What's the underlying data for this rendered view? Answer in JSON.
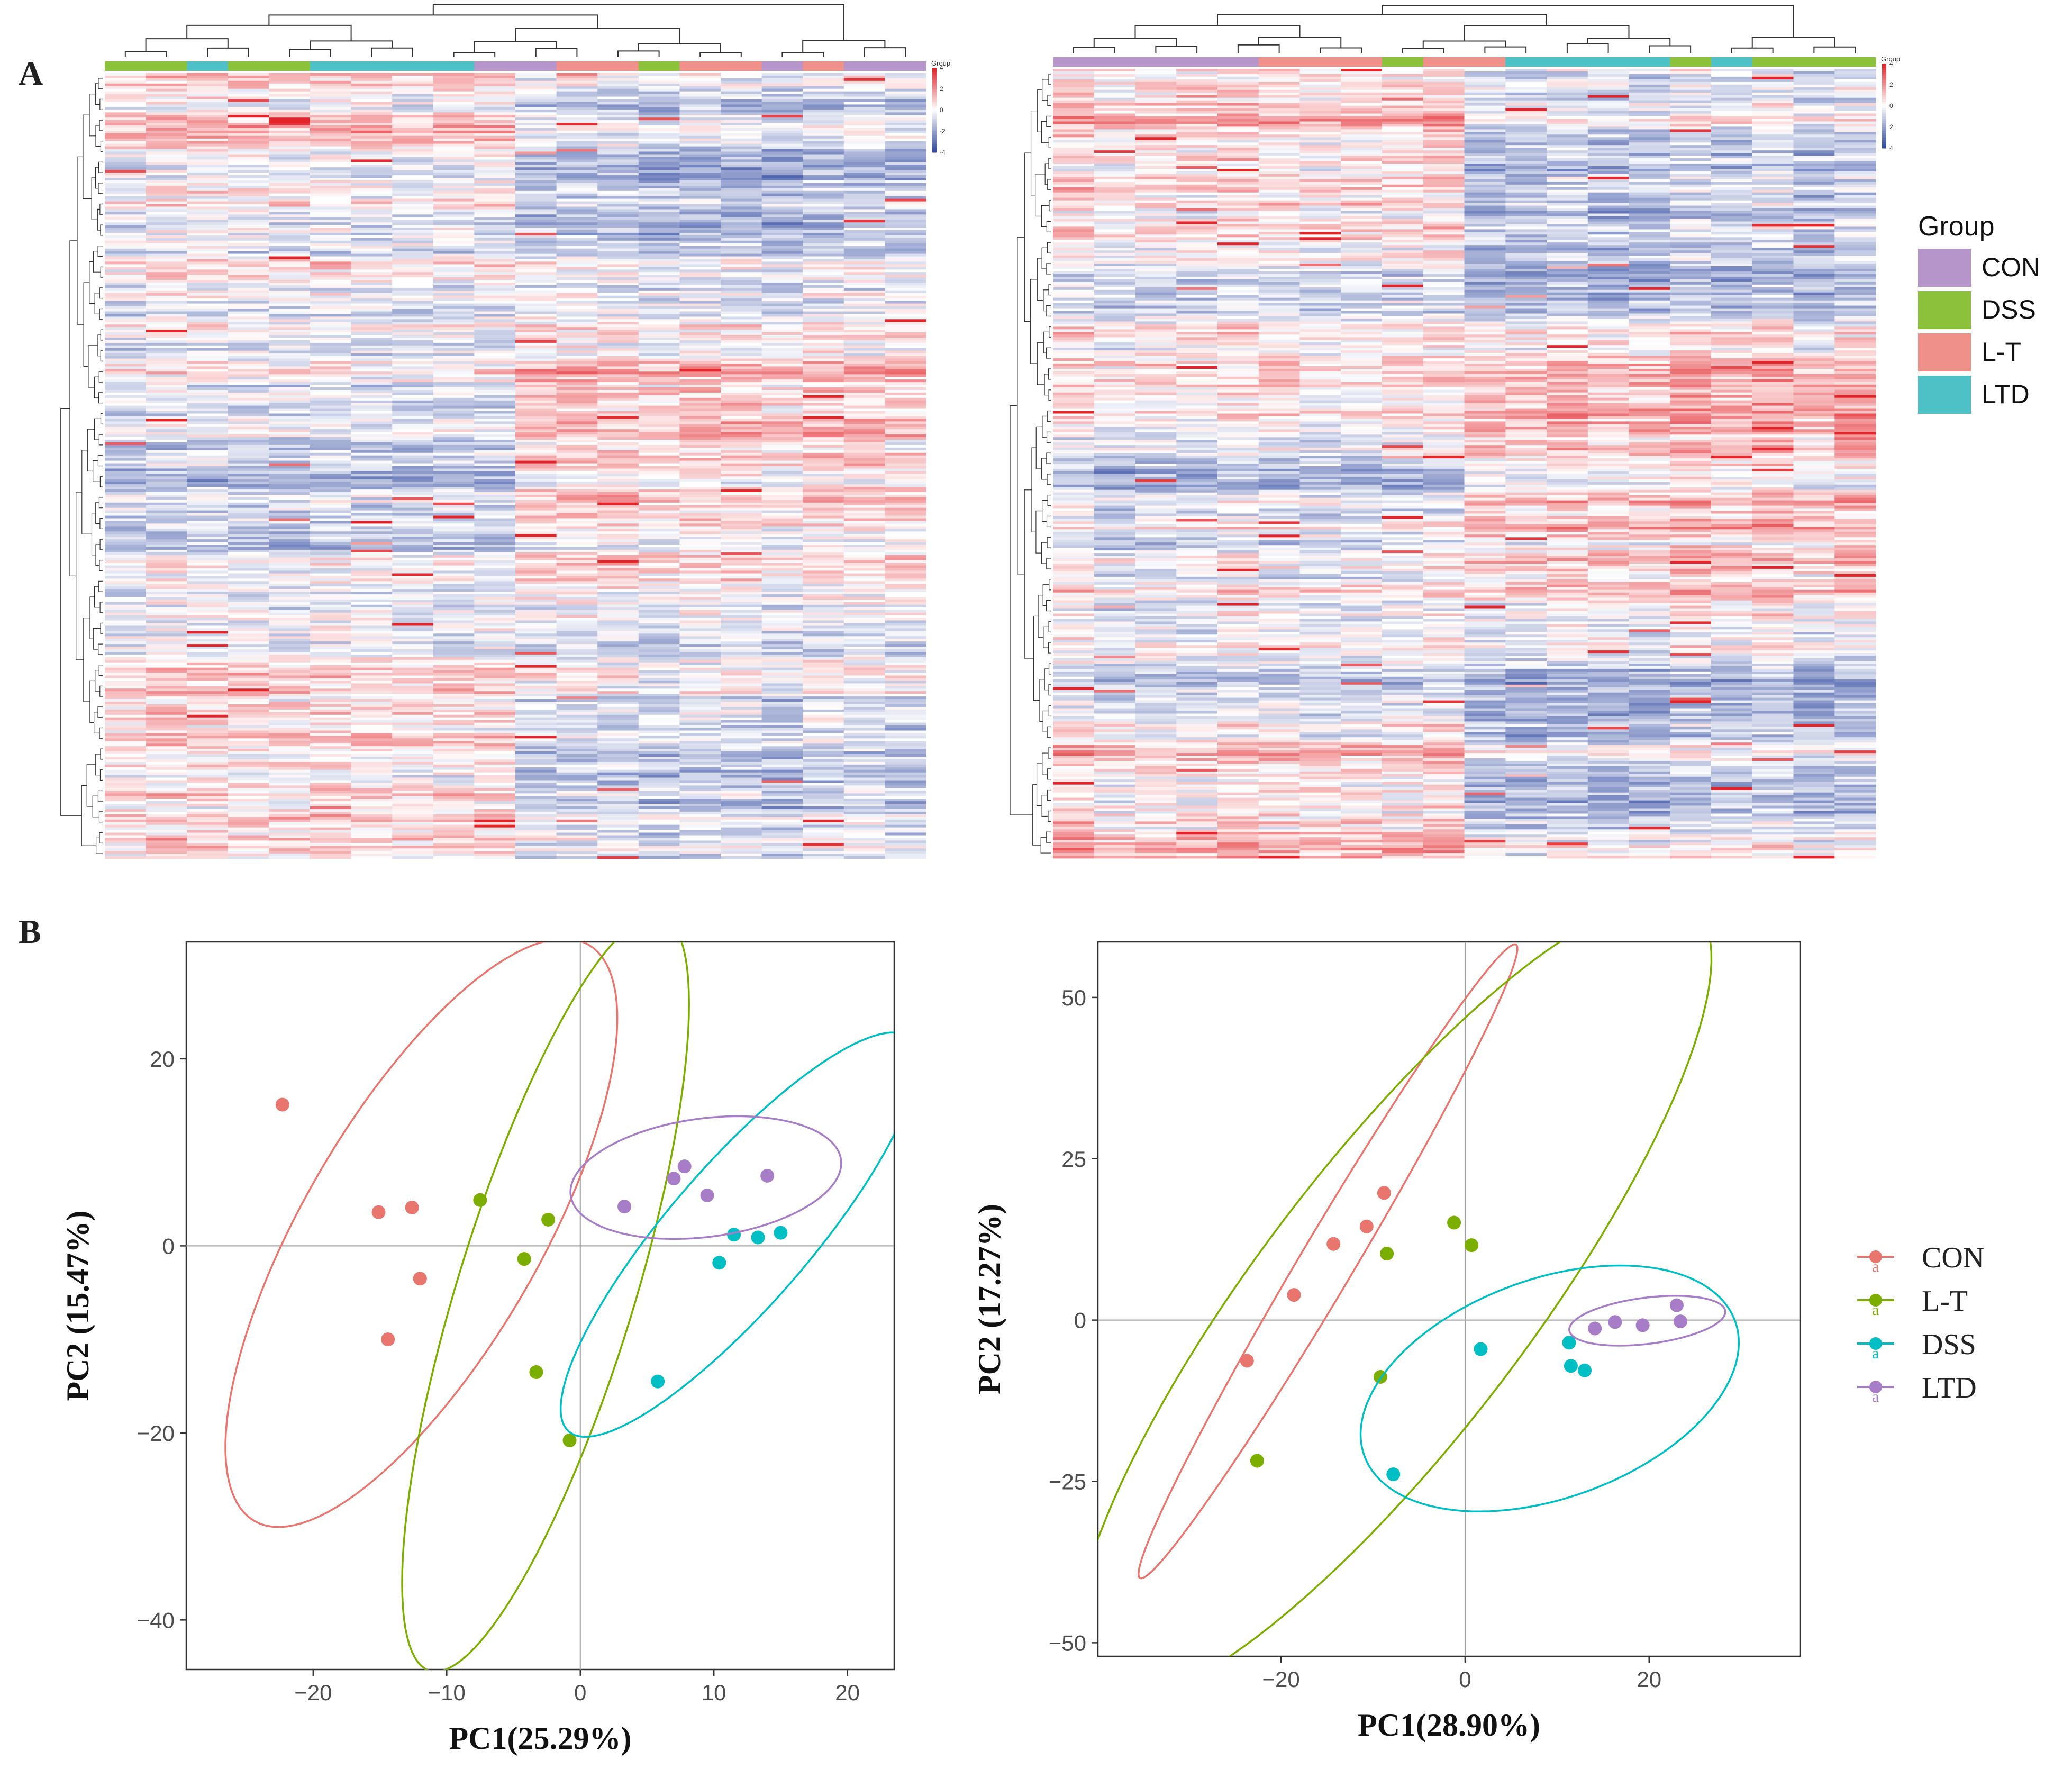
{
  "labels": {
    "panel_a": "A",
    "panel_b": "B"
  },
  "colors": {
    "CON": "#E8756E",
    "L-T": "#7CAE00",
    "DSS": "#00BFC4",
    "LTD": "#A77DC8",
    "hm_CON": "#B696CA",
    "hm_DSS": "#8CC23B",
    "hm_LT": "#F0908A",
    "hm_LTD": "#4EC1C6",
    "hm_low": "#3149A0",
    "hm_mid": "#FFFFFF",
    "hm_high": "#E2252B"
  },
  "heatmap_legend": {
    "title": "Group",
    "items": [
      {
        "label": "CON",
        "color": "#B696CA"
      },
      {
        "label": "DSS",
        "color": "#8CC23B"
      },
      {
        "label": "L-T",
        "color": "#F0908A"
      },
      {
        "label": "LTD",
        "color": "#4EC1C6"
      }
    ]
  },
  "pca_legend": {
    "items": [
      {
        "label": "CON",
        "color": "#E8756E",
        "glyph": "a"
      },
      {
        "label": "L-T",
        "color": "#7CAE00",
        "glyph": "a"
      },
      {
        "label": "DSS",
        "color": "#00BFC4",
        "glyph": "a"
      },
      {
        "label": "LTD",
        "color": "#A77DC8",
        "glyph": "a"
      }
    ]
  },
  "chart_data": [
    {
      "type": "heatmap",
      "id": "heatmap-left",
      "colorbar": {
        "title": "Group",
        "ticks": [
          "4",
          "2",
          "0",
          "-2",
          "-4"
        ],
        "range": [
          -4,
          4
        ]
      },
      "column_groups": [
        "DSS",
        "DSS",
        "LTD",
        "DSS",
        "DSS",
        "LTD",
        "LTD",
        "LTD",
        "LTD",
        "CON",
        "CON",
        "L-T",
        "L-T",
        "DSS",
        "L-T",
        "L-T",
        "CON",
        "L-T",
        "CON",
        "CON"
      ],
      "n_rows": 300
    },
    {
      "type": "heatmap",
      "id": "heatmap-right",
      "colorbar": {
        "title": "Group",
        "ticks": [
          "4",
          "2",
          "0",
          "2",
          "4"
        ],
        "range": [
          -4,
          4
        ]
      },
      "column_groups": [
        "CON",
        "CON",
        "CON",
        "CON",
        "CON",
        "L-T",
        "L-T",
        "L-T",
        "DSS",
        "L-T",
        "L-T",
        "LTD",
        "LTD",
        "LTD",
        "LTD",
        "DSS",
        "LTD",
        "DSS",
        "DSS",
        "DSS"
      ],
      "n_rows": 300
    },
    {
      "type": "scatter",
      "id": "pca-left",
      "xlabel": "PC1(25.29%)",
      "ylabel": "PC2 (15.47%)",
      "xlim": [
        -29.5,
        23.5
      ],
      "ylim": [
        -45.3,
        32.5
      ],
      "xticks": [
        -20,
        -10,
        0,
        10,
        20
      ],
      "yticks": [
        -40,
        -20,
        0,
        20
      ],
      "series": [
        {
          "name": "CON",
          "points": [
            [
              -22.3,
              15.1
            ],
            [
              -15.1,
              3.6
            ],
            [
              -12.6,
              4.1
            ],
            [
              -12,
              -3.5
            ],
            [
              -14.4,
              -10
            ]
          ],
          "ellipse": {
            "cx": -11.9,
            "cy": 1.4,
            "a": 29.8,
            "b": 10.6,
            "angle_deg": -59.9
          }
        },
        {
          "name": "L-T",
          "points": [
            [
              -7.5,
              4.9
            ],
            [
              -2.4,
              2.8
            ],
            [
              -4.2,
              -1.4
            ],
            [
              -3.3,
              -13.5
            ],
            [
              -0.8,
              -20.8
            ]
          ],
          "ellipse": {
            "cx": -2.6,
            "cy": -5.1,
            "a": 35.3,
            "b": 7.9,
            "angle_deg": -72.9
          }
        },
        {
          "name": "DSS",
          "points": [
            [
              11.5,
              1.2
            ],
            [
              13.3,
              0.9
            ],
            [
              15,
              1.4
            ],
            [
              10.4,
              -1.8
            ],
            [
              5.8,
              -14.5
            ]
          ],
          "ellipse": {
            "cx": 11.9,
            "cy": 1.2,
            "a": 23.3,
            "b": 6.3,
            "angle_deg": -49.1
          }
        },
        {
          "name": "LTD",
          "points": [
            [
              3.3,
              4.2
            ],
            [
              7,
              7.2
            ],
            [
              7.8,
              8.5
            ],
            [
              9.5,
              5.4
            ],
            [
              14,
              7.5
            ]
          ],
          "ellipse": {
            "cx": 9.4,
            "cy": 7.3,
            "a": 12.2,
            "b": 5.3,
            "angle_deg": -7.5
          }
        }
      ]
    },
    {
      "type": "scatter",
      "id": "pca-right",
      "xlabel": "PC1(28.90%)",
      "ylabel": "PC2 (17.27%)",
      "xlim": [
        -39.9,
        36.4
      ],
      "ylim": [
        -52.1,
        58.6
      ],
      "xticks": [
        -20,
        0,
        20
      ],
      "yticks": [
        -50,
        -25,
        0,
        25,
        50
      ],
      "series": [
        {
          "name": "CON",
          "points": [
            [
              -23.7,
              -6.3
            ],
            [
              -18.6,
              3.9
            ],
            [
              -14.3,
              11.8
            ],
            [
              -10.7,
              14.5
            ],
            [
              -8.8,
              19.7
            ]
          ],
          "ellipse": {
            "cx": -14.9,
            "cy": 9.1,
            "a": 47.8,
            "b": 3.5,
            "angle_deg": -59.3
          }
        },
        {
          "name": "L-T",
          "points": [
            [
              -22.6,
              -21.8
            ],
            [
              -9.2,
              -8.8
            ],
            [
              -8.5,
              10.3
            ],
            [
              -1.2,
              15.1
            ],
            [
              0.7,
              11.6
            ]
          ],
          "ellipse": {
            "cx": -7.8,
            "cy": 3.1,
            "a": 64.1,
            "b": 17.6,
            "angle_deg": -52.7
          }
        },
        {
          "name": "DSS",
          "points": [
            [
              -7.8,
              -23.9
            ],
            [
              1.7,
              -4.5
            ],
            [
              11.3,
              -3.5
            ],
            [
              11.5,
              -7.1
            ],
            [
              13,
              -7.8
            ]
          ],
          "ellipse": {
            "cx": 9.2,
            "cy": -10.6,
            "a": 25.6,
            "b": 14.2,
            "angle_deg": -20.0
          }
        },
        {
          "name": "LTD",
          "points": [
            [
              14.1,
              -1.3
            ],
            [
              16.3,
              -0.3
            ],
            [
              19.3,
              -0.8
            ],
            [
              23,
              2.3
            ],
            [
              23.4,
              -0.2
            ]
          ],
          "ellipse": {
            "cx": 19.8,
            "cy": -0.1,
            "a": 10.2,
            "b": 3.0,
            "angle_deg": -7.1
          }
        }
      ]
    }
  ]
}
